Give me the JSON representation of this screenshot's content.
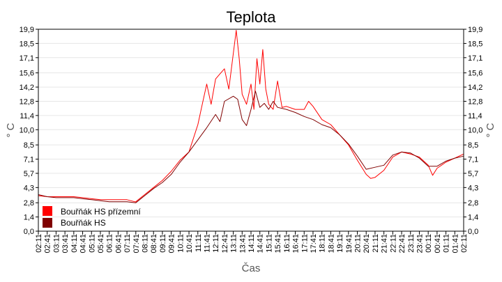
{
  "chart_data": {
    "type": "line",
    "title": "Teplota",
    "xlabel": "Čas",
    "ylabel": "° C",
    "ylim": [
      0,
      19.9
    ],
    "y_ticks": [
      "0,0",
      "1,4",
      "2,8",
      "4,3",
      "5,7",
      "7,1",
      "8,5",
      "10,0",
      "11,4",
      "12,8",
      "14,2",
      "15,6",
      "17,1",
      "18,5",
      "19,9"
    ],
    "y_tick_values": [
      0,
      1.4,
      2.8,
      4.3,
      5.7,
      7.1,
      8.5,
      10.0,
      11.4,
      12.8,
      14.2,
      15.6,
      17.1,
      18.5,
      19.9
    ],
    "x_ticks": [
      "02:11",
      "02:41",
      "03:11",
      "03:41",
      "04:11",
      "04:41",
      "05:11",
      "05:41",
      "06:11",
      "06:41",
      "07:11",
      "07:41",
      "08:11",
      "08:41",
      "09:11",
      "09:41",
      "10:11",
      "10:41",
      "11:11",
      "11:41",
      "12:11",
      "12:41",
      "13:11",
      "13:41",
      "14:11",
      "14:41",
      "15:11",
      "15:41",
      "16:11",
      "16:41",
      "17:11",
      "17:41",
      "18:11",
      "18:41",
      "19:11",
      "19:41",
      "20:11",
      "20:41",
      "21:11",
      "21:41",
      "22:11",
      "22:41",
      "23:11",
      "23:41",
      "00:11",
      "00:41",
      "01:11",
      "01:41",
      "02:11"
    ],
    "grid": true,
    "legend_position": "bottom-left",
    "series": [
      {
        "name": "Bouřňák HS přízemní",
        "color": "#ff0000",
        "points": [
          [
            "02:11",
            3.5
          ],
          [
            "02:41",
            3.4
          ],
          [
            "03:11",
            3.4
          ],
          [
            "03:41",
            3.4
          ],
          [
            "04:11",
            3.4
          ],
          [
            "04:41",
            3.3
          ],
          [
            "05:11",
            3.2
          ],
          [
            "05:41",
            3.1
          ],
          [
            "06:11",
            3.1
          ],
          [
            "06:41",
            3.1
          ],
          [
            "07:11",
            3.1
          ],
          [
            "07:37",
            2.9
          ],
          [
            "07:41",
            2.9
          ],
          [
            "08:11",
            3.6
          ],
          [
            "08:41",
            4.3
          ],
          [
            "09:11",
            5.0
          ],
          [
            "09:41",
            5.9
          ],
          [
            "10:11",
            7.0
          ],
          [
            "10:41",
            7.8
          ],
          [
            "11:11",
            10.5
          ],
          [
            "11:26",
            12.5
          ],
          [
            "11:41",
            14.5
          ],
          [
            "11:56",
            12.5
          ],
          [
            "12:11",
            15.0
          ],
          [
            "12:26",
            15.5
          ],
          [
            "12:41",
            16.0
          ],
          [
            "12:56",
            14.0
          ],
          [
            "13:11",
            17.5
          ],
          [
            "13:21",
            19.8
          ],
          [
            "13:31",
            17.0
          ],
          [
            "13:41",
            13.5
          ],
          [
            "13:56",
            12.5
          ],
          [
            "14:11",
            14.5
          ],
          [
            "14:21",
            12.0
          ],
          [
            "14:31",
            17.0
          ],
          [
            "14:41",
            14.5
          ],
          [
            "14:51",
            17.9
          ],
          [
            "15:01",
            14.0
          ],
          [
            "15:11",
            12.5
          ],
          [
            "15:26",
            12.0
          ],
          [
            "15:41",
            14.8
          ],
          [
            "15:56",
            12.2
          ],
          [
            "16:11",
            12.3
          ],
          [
            "16:41",
            12.0
          ],
          [
            "17:11",
            12.0
          ],
          [
            "17:26",
            12.8
          ],
          [
            "17:41",
            12.3
          ],
          [
            "18:11",
            11.0
          ],
          [
            "18:41",
            10.5
          ],
          [
            "19:11",
            9.5
          ],
          [
            "19:41",
            8.5
          ],
          [
            "20:11",
            7.0
          ],
          [
            "20:41",
            5.6
          ],
          [
            "20:56",
            5.2
          ],
          [
            "21:11",
            5.3
          ],
          [
            "21:41",
            6.0
          ],
          [
            "22:11",
            7.3
          ],
          [
            "22:41",
            7.8
          ],
          [
            "23:11",
            7.6
          ],
          [
            "23:41",
            7.3
          ],
          [
            "00:11",
            6.5
          ],
          [
            "00:26",
            5.5
          ],
          [
            "00:41",
            6.2
          ],
          [
            "01:11",
            6.8
          ],
          [
            "01:41",
            7.2
          ],
          [
            "02:11",
            7.6
          ]
        ]
      },
      {
        "name": "Bouřňák HS",
        "color": "#800000",
        "points": [
          [
            "02:11",
            3.6
          ],
          [
            "02:41",
            3.4
          ],
          [
            "03:11",
            3.3
          ],
          [
            "03:41",
            3.3
          ],
          [
            "04:11",
            3.3
          ],
          [
            "04:41",
            3.2
          ],
          [
            "05:11",
            3.1
          ],
          [
            "05:41",
            3.0
          ],
          [
            "06:11",
            2.9
          ],
          [
            "06:41",
            2.9
          ],
          [
            "07:11",
            2.9
          ],
          [
            "07:41",
            2.8
          ],
          [
            "08:11",
            3.5
          ],
          [
            "08:41",
            4.2
          ],
          [
            "09:11",
            4.8
          ],
          [
            "09:41",
            5.6
          ],
          [
            "10:11",
            6.8
          ],
          [
            "10:41",
            7.8
          ],
          [
            "11:11",
            9.0
          ],
          [
            "11:41",
            10.2
          ],
          [
            "12:11",
            11.5
          ],
          [
            "12:26",
            10.8
          ],
          [
            "12:41",
            12.8
          ],
          [
            "13:11",
            13.3
          ],
          [
            "13:26",
            13.0
          ],
          [
            "13:41",
            11.0
          ],
          [
            "13:56",
            10.4
          ],
          [
            "14:11",
            12.0
          ],
          [
            "14:26",
            13.8
          ],
          [
            "14:41",
            12.2
          ],
          [
            "14:56",
            12.6
          ],
          [
            "15:11",
            12.0
          ],
          [
            "15:26",
            12.8
          ],
          [
            "15:41",
            12.2
          ],
          [
            "16:11",
            12.0
          ],
          [
            "16:41",
            11.7
          ],
          [
            "17:11",
            11.3
          ],
          [
            "17:41",
            11.0
          ],
          [
            "18:11",
            10.5
          ],
          [
            "18:41",
            10.2
          ],
          [
            "19:11",
            9.5
          ],
          [
            "19:41",
            8.6
          ],
          [
            "20:11",
            7.4
          ],
          [
            "20:41",
            6.1
          ],
          [
            "21:11",
            6.3
          ],
          [
            "21:41",
            6.5
          ],
          [
            "22:11",
            7.5
          ],
          [
            "22:41",
            7.8
          ],
          [
            "23:11",
            7.7
          ],
          [
            "23:41",
            7.2
          ],
          [
            "00:11",
            6.4
          ],
          [
            "00:41",
            6.4
          ],
          [
            "01:11",
            6.9
          ],
          [
            "01:41",
            7.2
          ],
          [
            "02:11",
            7.4
          ]
        ]
      }
    ]
  }
}
